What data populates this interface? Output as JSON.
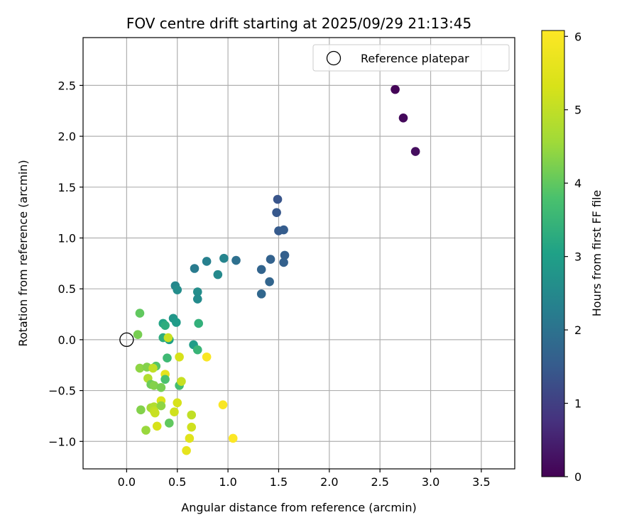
{
  "chart_data": {
    "type": "scatter",
    "title": "FOV centre drift starting at 2025/09/29 21:13:45",
    "xlabel": "Angular distance from reference (arcmin)",
    "ylabel": "Rotation from reference (arcmin)",
    "xlim": [
      -0.43,
      3.83
    ],
    "ylim": [
      -1.27,
      2.97
    ],
    "xticks": [
      0.0,
      0.5,
      1.0,
      1.5,
      2.0,
      2.5,
      3.0,
      3.5
    ],
    "xtick_labels": [
      "0.0",
      "0.5",
      "1.0",
      "1.5",
      "2.0",
      "2.5",
      "3.0",
      "3.5"
    ],
    "yticks": [
      -1.0,
      -0.5,
      0.0,
      0.5,
      1.0,
      1.5,
      2.0,
      2.5
    ],
    "ytick_labels": [
      "−1.0",
      "−0.5",
      "0.0",
      "0.5",
      "1.0",
      "1.5",
      "2.0",
      "2.5"
    ],
    "grid": true,
    "legend": {
      "position": "top-right",
      "entries": [
        "Reference platepar"
      ]
    },
    "reference_point": {
      "x": 0.0,
      "y": 0.0,
      "label": "Reference platepar"
    },
    "colorbar": {
      "label": "Hours from first FF file",
      "range": [
        0,
        6.08
      ],
      "ticks": [
        0,
        1,
        2,
        3,
        4,
        5,
        6
      ],
      "tick_labels": [
        "0",
        "1",
        "2",
        "3",
        "4",
        "5",
        "6"
      ],
      "colormap": "viridis"
    },
    "points": [
      {
        "x": 2.65,
        "y": 2.46,
        "c": 0.05
      },
      {
        "x": 2.73,
        "y": 2.18,
        "c": 0.12
      },
      {
        "x": 2.85,
        "y": 1.85,
        "c": 0.2
      },
      {
        "x": 1.49,
        "y": 1.38,
        "c": 1.4
      },
      {
        "x": 1.48,
        "y": 1.25,
        "c": 1.45
      },
      {
        "x": 1.5,
        "y": 1.07,
        "c": 1.5
      },
      {
        "x": 1.55,
        "y": 1.08,
        "c": 1.55
      },
      {
        "x": 1.56,
        "y": 0.83,
        "c": 1.6
      },
      {
        "x": 1.55,
        "y": 0.76,
        "c": 1.62
      },
      {
        "x": 1.42,
        "y": 0.79,
        "c": 1.65
      },
      {
        "x": 1.33,
        "y": 0.69,
        "c": 1.7
      },
      {
        "x": 1.41,
        "y": 0.57,
        "c": 1.72
      },
      {
        "x": 1.33,
        "y": 0.45,
        "c": 1.75
      },
      {
        "x": 1.08,
        "y": 0.78,
        "c": 1.95
      },
      {
        "x": 0.96,
        "y": 0.8,
        "c": 2.4
      },
      {
        "x": 0.9,
        "y": 0.64,
        "c": 2.5
      },
      {
        "x": 0.79,
        "y": 0.77,
        "c": 2.3
      },
      {
        "x": 0.67,
        "y": 0.7,
        "c": 2.2
      },
      {
        "x": 0.7,
        "y": 0.47,
        "c": 2.6
      },
      {
        "x": 0.7,
        "y": 0.4,
        "c": 2.55
      },
      {
        "x": 0.48,
        "y": 0.53,
        "c": 2.45
      },
      {
        "x": 0.5,
        "y": 0.49,
        "c": 2.6
      },
      {
        "x": 0.46,
        "y": 0.21,
        "c": 2.8
      },
      {
        "x": 0.49,
        "y": 0.17,
        "c": 2.9
      },
      {
        "x": 0.71,
        "y": 0.16,
        "c": 3.4
      },
      {
        "x": 0.36,
        "y": 0.16,
        "c": 3.1
      },
      {
        "x": 0.38,
        "y": 0.14,
        "c": 3.3
      },
      {
        "x": 0.42,
        "y": 0.0,
        "c": 3.0
      },
      {
        "x": 0.36,
        "y": 0.02,
        "c": 3.3
      },
      {
        "x": 0.66,
        "y": -0.05,
        "c": 2.95
      },
      {
        "x": 0.7,
        "y": -0.1,
        "c": 3.5
      },
      {
        "x": 0.41,
        "y": 0.02,
        "c": 5.1
      },
      {
        "x": 0.4,
        "y": -0.18,
        "c": 3.6
      },
      {
        "x": 0.52,
        "y": -0.17,
        "c": 5.3
      },
      {
        "x": 0.79,
        "y": -0.17,
        "c": 6.0
      },
      {
        "x": 0.13,
        "y": 0.26,
        "c": 4.0
      },
      {
        "x": 0.11,
        "y": 0.05,
        "c": 4.2
      },
      {
        "x": 0.13,
        "y": -0.28,
        "c": 4.4
      },
      {
        "x": 0.2,
        "y": -0.27,
        "c": 4.3
      },
      {
        "x": 0.29,
        "y": -0.26,
        "c": 3.9
      },
      {
        "x": 0.26,
        "y": -0.28,
        "c": 5.0
      },
      {
        "x": 0.38,
        "y": -0.34,
        "c": 5.6
      },
      {
        "x": 0.38,
        "y": -0.39,
        "c": 3.8
      },
      {
        "x": 0.21,
        "y": -0.38,
        "c": 4.8
      },
      {
        "x": 0.24,
        "y": -0.44,
        "c": 4.1
      },
      {
        "x": 0.27,
        "y": -0.45,
        "c": 4.3
      },
      {
        "x": 0.34,
        "y": -0.47,
        "c": 4.2
      },
      {
        "x": 0.52,
        "y": -0.45,
        "c": 3.7
      },
      {
        "x": 0.54,
        "y": -0.41,
        "c": 5.1
      },
      {
        "x": 0.34,
        "y": -0.6,
        "c": 5.4
      },
      {
        "x": 0.5,
        "y": -0.62,
        "c": 5.3
      },
      {
        "x": 0.95,
        "y": -0.64,
        "c": 6.0
      },
      {
        "x": 0.14,
        "y": -0.69,
        "c": 4.3
      },
      {
        "x": 0.24,
        "y": -0.67,
        "c": 4.6
      },
      {
        "x": 0.27,
        "y": -0.66,
        "c": 4.8
      },
      {
        "x": 0.34,
        "y": -0.65,
        "c": 4.4
      },
      {
        "x": 0.27,
        "y": -0.7,
        "c": 5.0
      },
      {
        "x": 0.28,
        "y": -0.72,
        "c": 5.1
      },
      {
        "x": 0.47,
        "y": -0.71,
        "c": 5.2
      },
      {
        "x": 0.64,
        "y": -0.74,
        "c": 5.0
      },
      {
        "x": 0.42,
        "y": -0.82,
        "c": 4.0
      },
      {
        "x": 0.3,
        "y": -0.85,
        "c": 5.3
      },
      {
        "x": 0.19,
        "y": -0.89,
        "c": 4.5
      },
      {
        "x": 0.64,
        "y": -0.86,
        "c": 5.2
      },
      {
        "x": 0.62,
        "y": -0.97,
        "c": 5.5
      },
      {
        "x": 1.05,
        "y": -0.97,
        "c": 6.05
      },
      {
        "x": 0.59,
        "y": -1.09,
        "c": 5.6
      }
    ]
  }
}
